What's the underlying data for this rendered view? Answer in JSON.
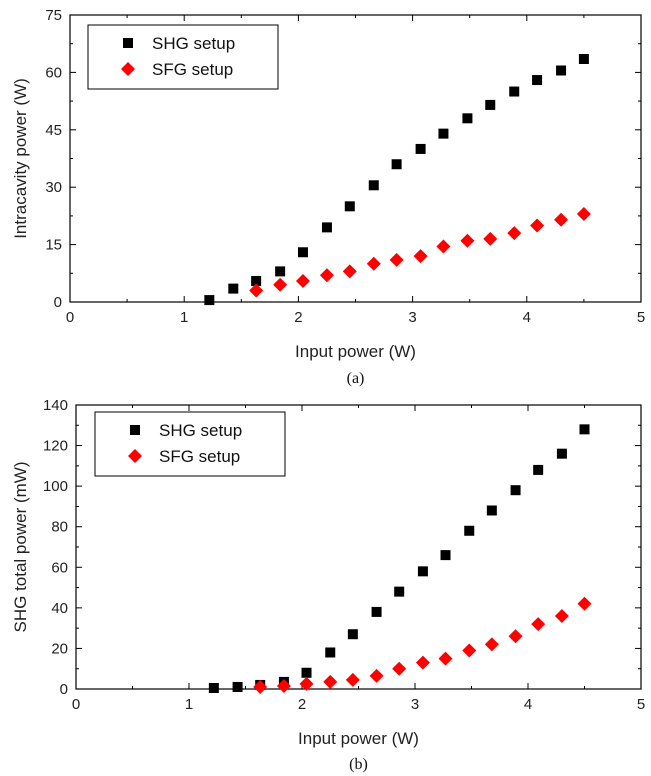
{
  "chart_data": [
    {
      "type": "scatter",
      "caption": "(a)",
      "xlabel": "Input power (W)",
      "ylabel": "Intracavity power (W)",
      "xlim": [
        0,
        5
      ],
      "ylim": [
        0,
        75
      ],
      "xticks": [
        0,
        1,
        2,
        3,
        4,
        5
      ],
      "yticks": [
        0,
        15,
        30,
        45,
        60,
        75
      ],
      "grid": false,
      "legend_position": "top-left",
      "series": [
        {
          "name": "SHG setup",
          "marker": "square",
          "color": "#000000",
          "x": [
            1.22,
            1.43,
            1.63,
            1.84,
            2.04,
            2.25,
            2.45,
            2.66,
            2.86,
            3.07,
            3.27,
            3.48,
            3.68,
            3.89,
            4.09,
            4.3,
            4.5
          ],
          "y": [
            0.5,
            3.5,
            5.5,
            8,
            13,
            19.5,
            25,
            30.5,
            36,
            40,
            44,
            48,
            51.5,
            55,
            58,
            60.5,
            63.5
          ]
        },
        {
          "name": "SFG setup",
          "marker": "diamond",
          "color": "#ff0000",
          "x": [
            1.63,
            1.84,
            2.04,
            2.25,
            2.45,
            2.66,
            2.86,
            3.07,
            3.27,
            3.48,
            3.68,
            3.89,
            4.09,
            4.3,
            4.5
          ],
          "y": [
            3,
            4.5,
            5.5,
            7,
            8,
            10,
            11,
            12,
            14.5,
            16,
            16.5,
            18,
            20,
            21.5,
            23
          ]
        }
      ]
    },
    {
      "type": "scatter",
      "caption": "(b)",
      "xlabel": "Input power (W)",
      "ylabel": "SHG total power (mW)",
      "xlim": [
        0,
        5
      ],
      "ylim": [
        0,
        140
      ],
      "xticks": [
        0,
        1,
        2,
        3,
        4,
        5
      ],
      "yticks": [
        0,
        20,
        40,
        60,
        80,
        100,
        120,
        140
      ],
      "grid": false,
      "legend_position": "top-left",
      "series": [
        {
          "name": "SHG setup",
          "marker": "square",
          "color": "#000000",
          "x": [
            1.22,
            1.43,
            1.63,
            1.84,
            2.04,
            2.25,
            2.45,
            2.66,
            2.86,
            3.07,
            3.27,
            3.48,
            3.68,
            3.89,
            4.09,
            4.3,
            4.5
          ],
          "y": [
            0.5,
            1,
            2,
            3.5,
            8,
            18,
            27,
            38,
            48,
            58,
            66,
            78,
            88,
            98,
            108,
            116,
            128
          ]
        },
        {
          "name": "SFG setup",
          "marker": "diamond",
          "color": "#ff0000",
          "x": [
            1.63,
            1.84,
            2.04,
            2.25,
            2.45,
            2.66,
            2.86,
            3.07,
            3.27,
            3.48,
            3.68,
            3.89,
            4.09,
            4.3,
            4.5
          ],
          "y": [
            1,
            1.5,
            2.5,
            3.5,
            4.5,
            6.5,
            10,
            13,
            15,
            19,
            22,
            26,
            32,
            36,
            42
          ]
        }
      ]
    }
  ]
}
